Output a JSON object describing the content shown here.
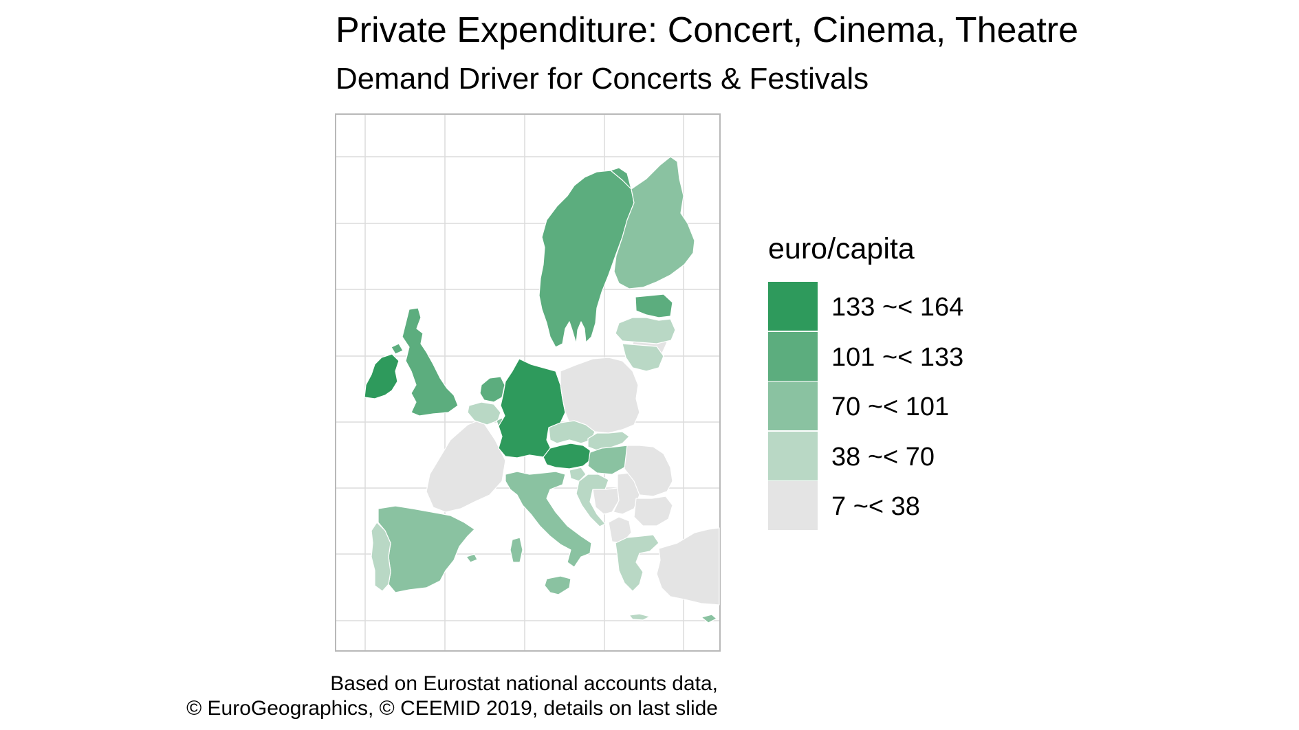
{
  "title": "Private Expenditure: Concert, Cinema, Theatre",
  "subtitle": "Demand Driver for Concerts & Festivals",
  "legend": {
    "title": "euro/capita",
    "classes": [
      {
        "label": "133 ~< 164",
        "color": "#2e9a5c"
      },
      {
        "label": "101 ~< 133",
        "color": "#5cad7e"
      },
      {
        "label": "70 ~< 101",
        "color": "#8ac2a1"
      },
      {
        "label": "38 ~< 70",
        "color": "#b9d8c5"
      },
      {
        "label": "7 ~< 38",
        "color": "#e4e4e4"
      }
    ]
  },
  "caption": {
    "line1": "Based on Eurostat national accounts data,",
    "line2": "© EuroGeographics, © CEEMID 2019, details on last slide"
  },
  "regions": [
    {
      "name": "Sweden",
      "class": 1
    },
    {
      "name": "Finland",
      "class": 2
    },
    {
      "name": "Norway-outline",
      "class": 1
    },
    {
      "name": "Estonia",
      "class": 1
    },
    {
      "name": "Latvia",
      "class": 3
    },
    {
      "name": "Lithuania",
      "class": 3
    },
    {
      "name": "Ireland",
      "class": 0
    },
    {
      "name": "United Kingdom",
      "class": 1
    },
    {
      "name": "Netherlands",
      "class": 1
    },
    {
      "name": "Belgium",
      "class": 3
    },
    {
      "name": "Luxembourg",
      "class": 2
    },
    {
      "name": "Germany",
      "class": 0
    },
    {
      "name": "Poland",
      "class": 4
    },
    {
      "name": "Czechia",
      "class": 3
    },
    {
      "name": "Slovakia",
      "class": 3
    },
    {
      "name": "Austria",
      "class": 0
    },
    {
      "name": "Hungary",
      "class": 2
    },
    {
      "name": "Slovenia",
      "class": 3
    },
    {
      "name": "Croatia",
      "class": 3
    },
    {
      "name": "Romania",
      "class": 4
    },
    {
      "name": "Bulgaria",
      "class": 4
    },
    {
      "name": "Italy",
      "class": 2
    },
    {
      "name": "Sicily",
      "class": 2
    },
    {
      "name": "Sardinia",
      "class": 2
    },
    {
      "name": "Spain",
      "class": 2
    },
    {
      "name": "Portugal",
      "class": 3
    },
    {
      "name": "France",
      "class": 4
    },
    {
      "name": "Greece",
      "class": 3
    },
    {
      "name": "Turkey",
      "class": 4
    },
    {
      "name": "Cyprus",
      "class": 2
    },
    {
      "name": "Balearics",
      "class": 2
    },
    {
      "name": "Serbia",
      "class": 4
    },
    {
      "name": "Bosnia",
      "class": 4
    },
    {
      "name": "Albania",
      "class": 4
    },
    {
      "name": "Belarus-Russia",
      "class": 4
    }
  ]
}
